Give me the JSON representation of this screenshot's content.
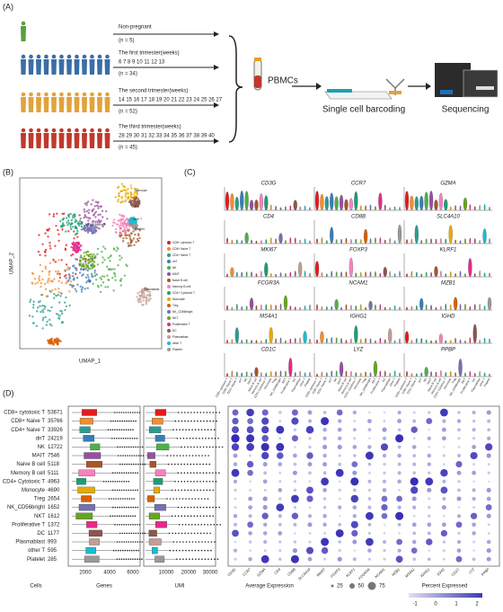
{
  "panel_a": {
    "label": "(A)",
    "groups": [
      {
        "name": "Non-pregnant",
        "n": "(n = 5)"
      },
      {
        "name": "The first trimester(weeks)",
        "weeks": "6 7 8 9 10 11 12 13",
        "n": "(n = 34)"
      },
      {
        "name": "The second trimester(weeks)",
        "weeks": "14 15 16 17 18 19 20 21 22 23 24 25 26 27",
        "n": "(n = 52)"
      },
      {
        "name": "The third trimester(weeks)",
        "weeks": "28 29 30 31 32 33 34 35 36 37 38 39 40",
        "n": "(n = 45)"
      }
    ],
    "pbmcs": "PBMCs",
    "barcoding": "Single cell barcoding",
    "sequencing": "Sequencing"
  },
  "panel_b": {
    "label": "(B)",
    "x_axis": "UMAP_1",
    "y_axis": "UMAP_2"
  },
  "panel_c": {
    "label": "(C)",
    "genes": [
      "CD3G",
      "CCR7",
      "GZMA",
      "CD4",
      "CD8B",
      "SLC4A10",
      "MKI67",
      "FOXP3",
      "KLRF1",
      "FCGR3A",
      "NCAM1",
      "MZB1",
      "MS4A1",
      "IGHG1",
      "IGHD",
      "CD1C",
      "LYZ",
      "PPBP"
    ]
  },
  "panel_d": {
    "label": "(D)",
    "rows": [
      {
        "cell": "CD8+ cytotoxic T",
        "count": 53671
      },
      {
        "cell": "CD8+ Naive T",
        "count": 35766
      },
      {
        "cell": "CD4+ Naive T",
        "count": 33926
      },
      {
        "cell": "dnT",
        "count": 24219
      },
      {
        "cell": "NK",
        "count": 12722
      },
      {
        "cell": "MAIT",
        "count": 7546
      },
      {
        "cell": "Naive B cell",
        "count": 5118
      },
      {
        "cell": "Memory B cell",
        "count": 5111
      },
      {
        "cell": "CD4+ Cytotoxic T",
        "count": 4963
      },
      {
        "cell": "Monocyte",
        "count": 4690
      },
      {
        "cell": "Treg",
        "count": 2654
      },
      {
        "cell": "NK_CD56bright",
        "count": 1652
      },
      {
        "cell": "NKT",
        "count": 1612
      },
      {
        "cell": "Proliferative T",
        "count": 1372
      },
      {
        "cell": "DC",
        "count": 1177
      },
      {
        "cell": "Plasmablast",
        "count": 993
      },
      {
        "cell": "other T",
        "count": 595
      },
      {
        "cell": "Platelet",
        "count": 285
      }
    ],
    "genes_ticks": [
      2000,
      4000,
      6000
    ],
    "umi_ticks": [
      10000,
      20000,
      30000
    ],
    "footer": {
      "cells": "Cells",
      "genes": "Genes",
      "umi": "UMI",
      "avg_expr": "Average Expression",
      "size_ticks": [
        25,
        50,
        75
      ],
      "pct": "Percent Expressed",
      "color_ticks": [
        -1,
        0,
        1,
        2
      ]
    }
  }
}
